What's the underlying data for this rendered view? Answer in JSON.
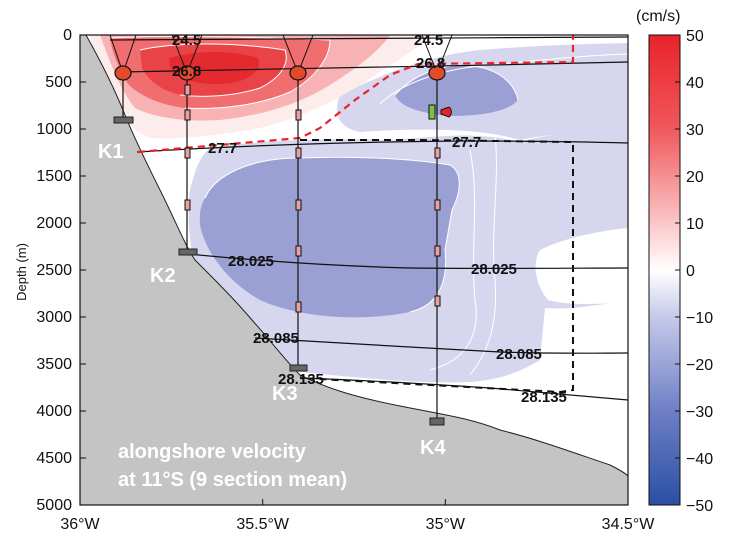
{
  "chart_data": {
    "type": "contour",
    "title": "",
    "caption_lines": [
      "alongshore velocity",
      "at 11°S (9 section mean)"
    ],
    "xlabel": "",
    "ylabel": "Depth (m)",
    "x_ticks": [
      "36°W",
      "35.5°W",
      "35°W",
      "34.5°W"
    ],
    "x_tick_values": [
      -36,
      -35.5,
      -35,
      -34.5
    ],
    "y_ticks": [
      "0",
      "500",
      "1000",
      "1500",
      "2000",
      "2500",
      "3000",
      "3500",
      "4000",
      "4500",
      "5000"
    ],
    "y_tick_values": [
      0,
      500,
      1000,
      1500,
      2000,
      2500,
      3000,
      3500,
      4000,
      4500,
      5000
    ],
    "xlim": [
      -36,
      -34.5
    ],
    "ylim": [
      5000,
      0
    ],
    "colorbar": {
      "unit": "(cm/s)",
      "range": [
        -50,
        50
      ],
      "ticks": [
        "50",
        "40",
        "30",
        "20",
        "10",
        "0",
        "−10",
        "−20",
        "−30",
        "−40",
        "−50"
      ],
      "tick_values": [
        50,
        40,
        30,
        20,
        10,
        0,
        -10,
        -20,
        -30,
        -40,
        -50
      ],
      "color_low": "#2a4fa3",
      "color_mid": "#ffffff",
      "color_high": "#e8232a"
    },
    "moorings": [
      {
        "name": "K1",
        "lon": -35.87,
        "bottom_depth": 900
      },
      {
        "name": "K2",
        "lon": -35.71,
        "bottom_depth": 2300
      },
      {
        "name": "K3",
        "lon": -35.41,
        "bottom_depth": 3550
      },
      {
        "name": "K4",
        "lon": -35.01,
        "bottom_depth": 4120
      }
    ],
    "isopycnals": [
      {
        "label": "24.5",
        "lon_labels": [
          -35.68,
          -35.0
        ]
      },
      {
        "label": "26.8",
        "lon_labels": [
          -35.67,
          -34.98
        ]
      },
      {
        "label": "27.7",
        "lon_labels": [
          -35.6,
          -34.95
        ]
      },
      {
        "label": "28.025",
        "lon_labels": [
          -35.57,
          -34.93
        ]
      },
      {
        "label": "28.085",
        "lon_labels": [
          -35.42,
          -34.88
        ]
      },
      {
        "label": "28.135",
        "lon_labels": [
          -35.4,
          -34.76
        ]
      }
    ],
    "velocity_regions": [
      {
        "sign": "positive",
        "core_lon": -35.71,
        "core_depth": 250,
        "max_cm_s": 35
      },
      {
        "sign": "negative",
        "core_lon": -35.4,
        "core_depth": 2300,
        "max_cm_s": -20
      },
      {
        "sign": "negative",
        "core_lon": -34.95,
        "core_depth": 650,
        "max_cm_s": -20
      }
    ]
  }
}
